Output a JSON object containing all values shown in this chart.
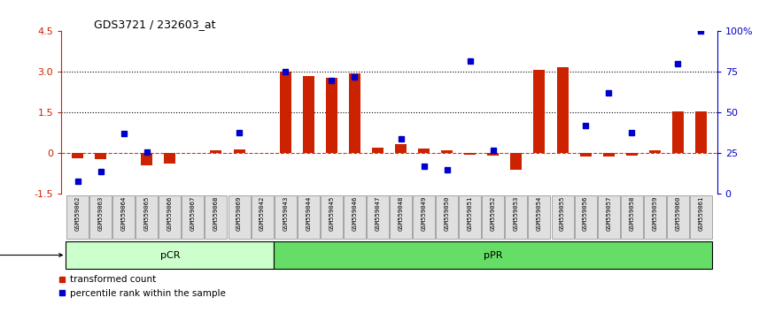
{
  "title": "GDS3721 / 232603_at",
  "samples": [
    "GSM559062",
    "GSM559063",
    "GSM559064",
    "GSM559065",
    "GSM559066",
    "GSM559067",
    "GSM559068",
    "GSM559069",
    "GSM559042",
    "GSM559043",
    "GSM559044",
    "GSM559045",
    "GSM559046",
    "GSM559047",
    "GSM559048",
    "GSM559049",
    "GSM559050",
    "GSM559051",
    "GSM559052",
    "GSM559053",
    "GSM559054",
    "GSM559055",
    "GSM559056",
    "GSM559057",
    "GSM559058",
    "GSM559059",
    "GSM559060",
    "GSM559061"
  ],
  "transformed_count": [
    -0.18,
    -0.2,
    0.0,
    -0.45,
    -0.38,
    0.0,
    0.1,
    0.15,
    0.0,
    3.0,
    2.85,
    2.8,
    2.95,
    0.22,
    0.35,
    0.18,
    0.12,
    -0.05,
    -0.08,
    -0.6,
    3.08,
    3.17,
    -0.1,
    -0.12,
    -0.08,
    0.1,
    1.55,
    1.55
  ],
  "percentile_rank": [
    8,
    14,
    37,
    26,
    null,
    null,
    null,
    38,
    null,
    75,
    null,
    70,
    72,
    null,
    34,
    17,
    15,
    82,
    27,
    null,
    null,
    null,
    42,
    62,
    38,
    null,
    80,
    100
  ],
  "pcr_count": 9,
  "pCR_color": "#ccffcc",
  "pPR_color": "#66dd66",
  "bar_color": "#cc2200",
  "dot_color": "#0000cc",
  "ylim": [
    -1.5,
    4.5
  ],
  "y2lim": [
    0,
    100
  ],
  "yticks_left": [
    -1.5,
    0.0,
    1.5,
    3.0,
    4.5
  ],
  "yticks_right": [
    0,
    25,
    50,
    75,
    100
  ],
  "ytick_labels_right": [
    "0",
    "25",
    "50",
    "75",
    "100%"
  ],
  "background_color": "#ffffff"
}
